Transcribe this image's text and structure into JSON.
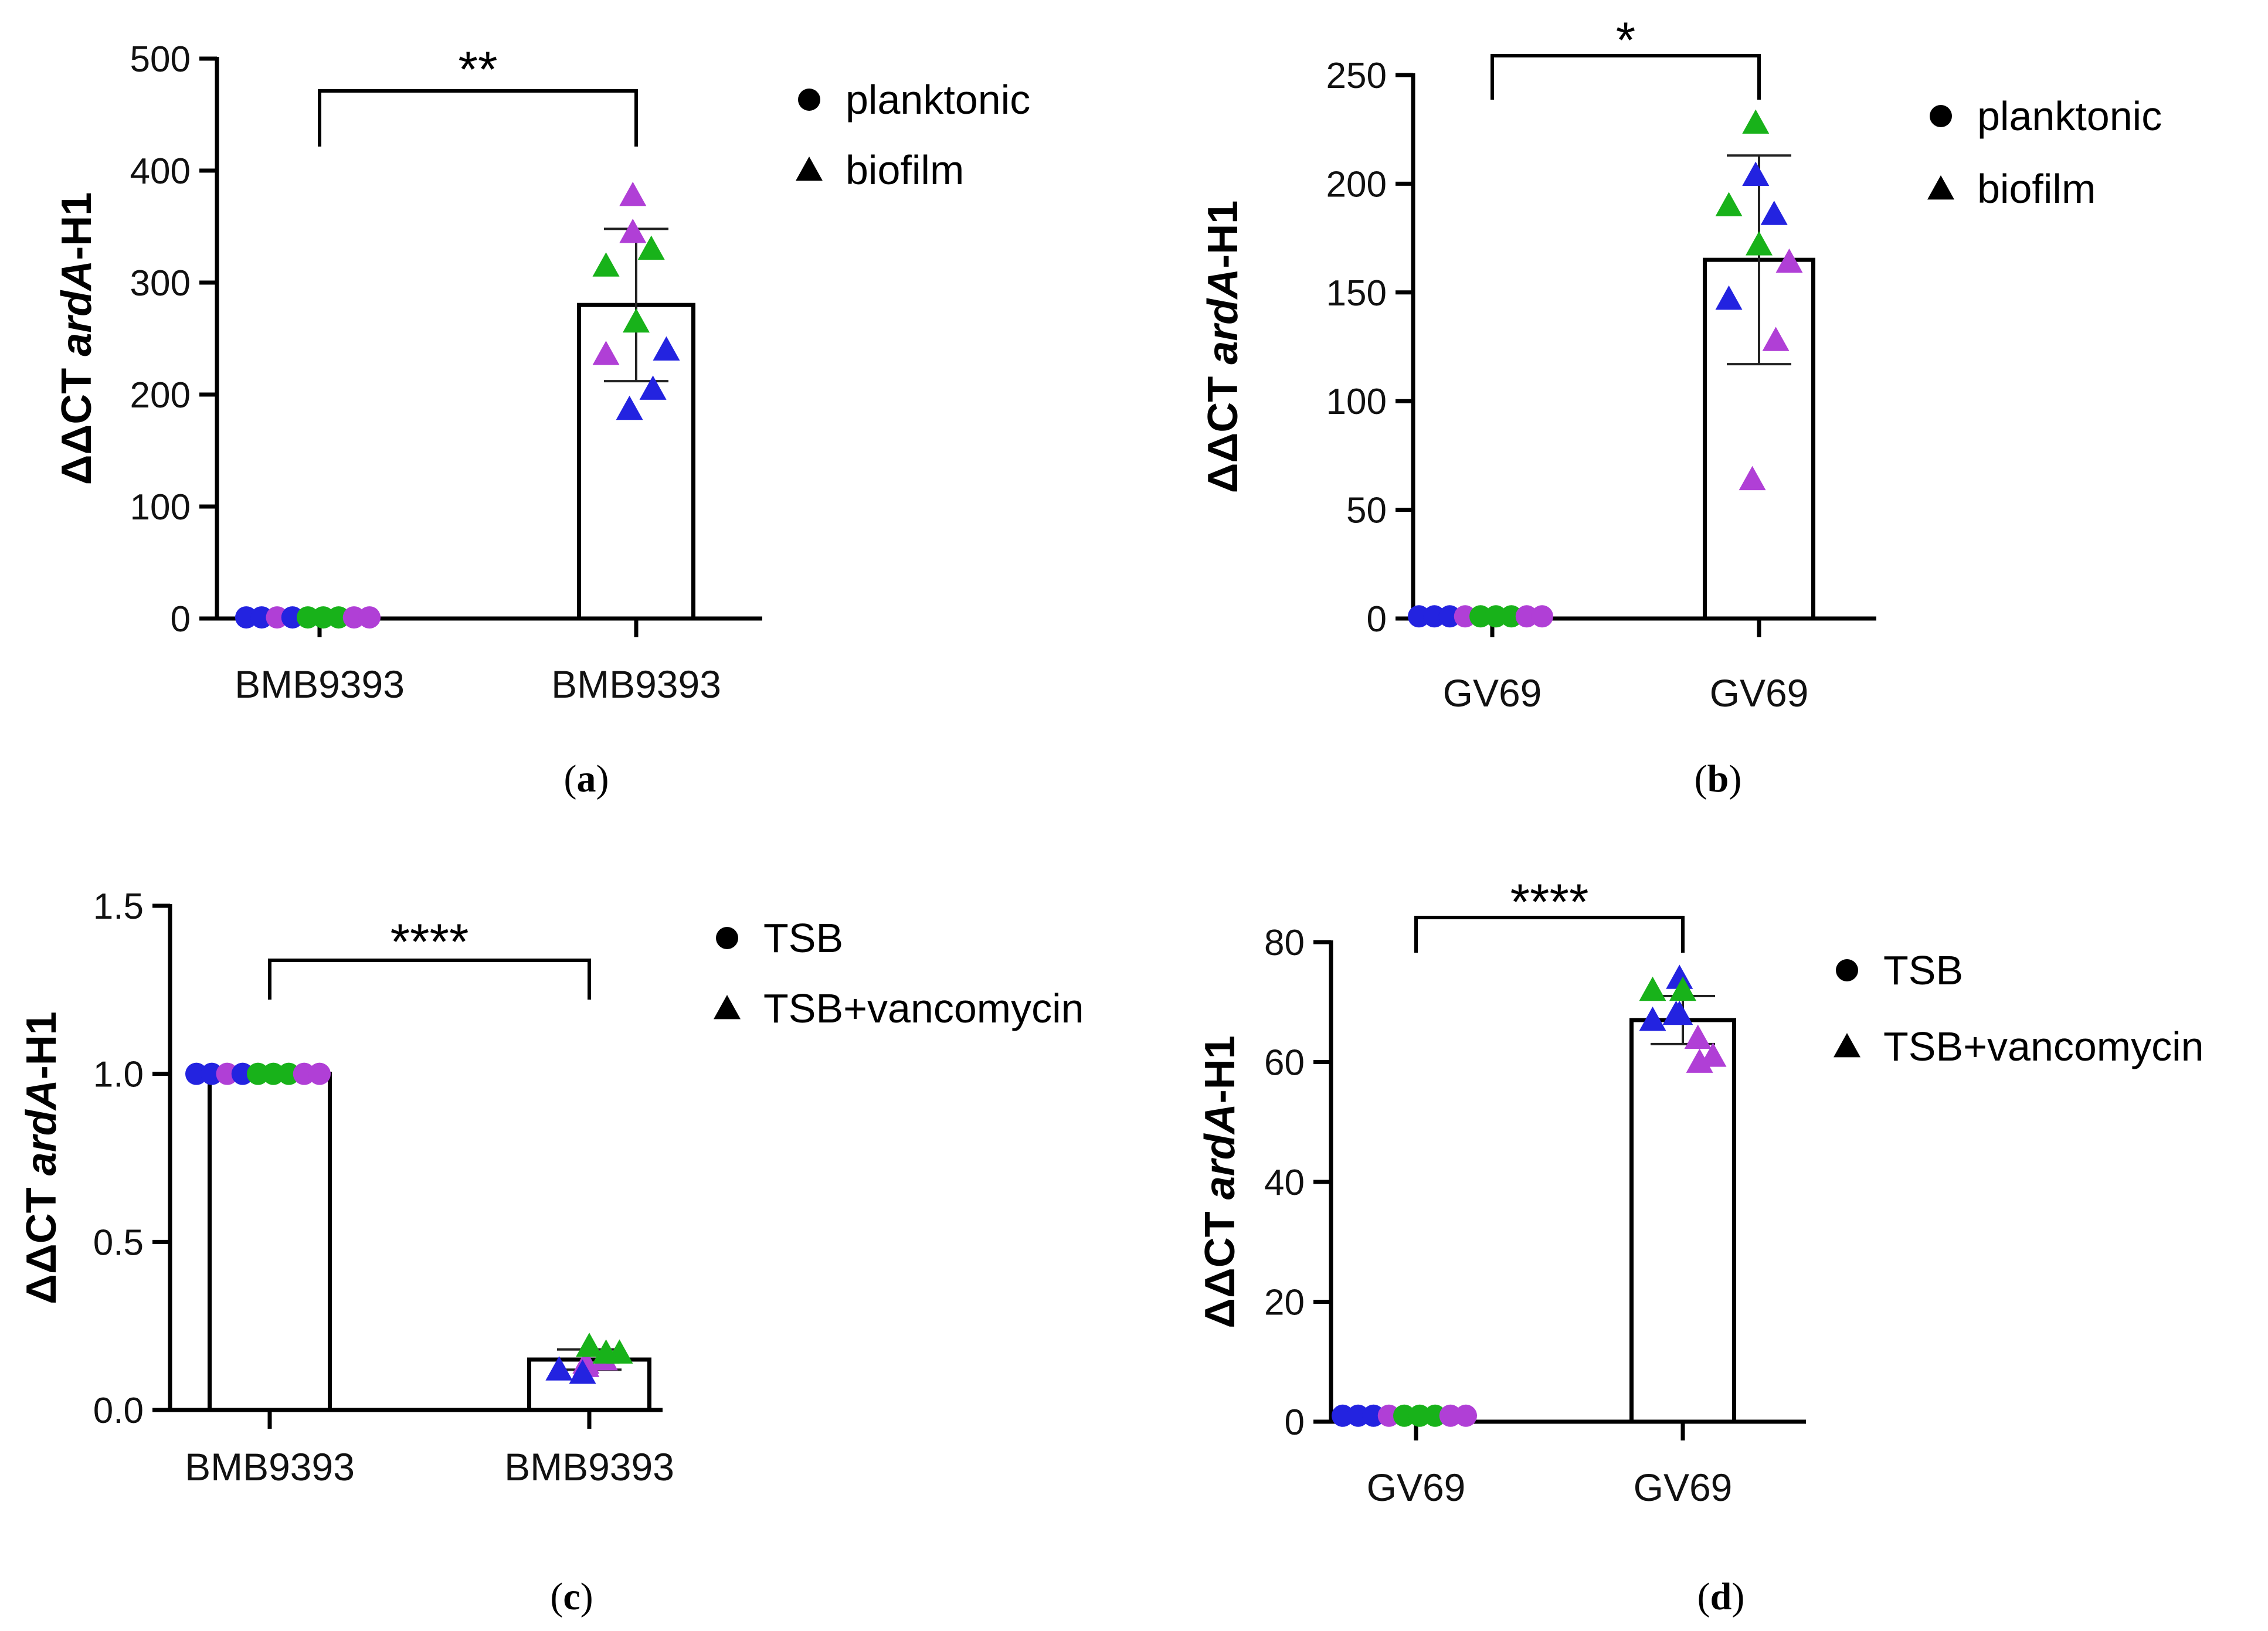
{
  "colors": {
    "blue": "#2323e0",
    "purple": "#b03fd6",
    "green": "#18b21a",
    "black": "#000000"
  },
  "chart_data": [
    {
      "type": "bar",
      "panel_label": "a",
      "ylabel": "ΔΔCT ",
      "ylabel_italic": "ardA",
      "ylabel_suffix": "-H1",
      "ylim": [
        0,
        500
      ],
      "yticks": [
        "0",
        "100",
        "200",
        "300",
        "400",
        "500"
      ],
      "ytick_values": [
        0,
        100,
        200,
        300,
        400,
        500
      ],
      "categories": [
        "BMB9393",
        "BMB9393"
      ],
      "legend": [
        "planktonic",
        "biofilm"
      ],
      "legend_markers": [
        "circle",
        "triangle"
      ],
      "significance": "**",
      "bars": [
        {
          "value": 1,
          "sd": 0,
          "marker": "circle",
          "points": [
            {
              "y": 1,
              "c": "blue"
            },
            {
              "y": 1,
              "c": "blue"
            },
            {
              "y": 1,
              "c": "purple"
            },
            {
              "y": 1,
              "c": "blue"
            },
            {
              "y": 1,
              "c": "green"
            },
            {
              "y": 1,
              "c": "green"
            },
            {
              "y": 1,
              "c": "green"
            },
            {
              "y": 1,
              "c": "purple"
            },
            {
              "y": 1,
              "c": "purple"
            }
          ]
        },
        {
          "value": 280,
          "sd": 68,
          "marker": "triangle",
          "points": [
            {
              "y": 378,
              "c": "purple"
            },
            {
              "y": 345,
              "c": "purple"
            },
            {
              "y": 315,
              "c": "green"
            },
            {
              "y": 330,
              "c": "green"
            },
            {
              "y": 265,
              "c": "green"
            },
            {
              "y": 240,
              "c": "blue"
            },
            {
              "y": 236,
              "c": "purple"
            },
            {
              "y": 205,
              "c": "blue"
            },
            {
              "y": 187,
              "c": "blue"
            }
          ]
        }
      ]
    },
    {
      "type": "bar",
      "panel_label": "b",
      "ylabel": "ΔΔCT ",
      "ylabel_italic": "ardA",
      "ylabel_suffix": "-H1",
      "ylim": [
        0,
        250
      ],
      "yticks": [
        "0",
        "50",
        "100",
        "150",
        "200",
        "250"
      ],
      "ytick_values": [
        0,
        50,
        100,
        150,
        200,
        250
      ],
      "categories": [
        "GV69",
        "GV69"
      ],
      "legend": [
        "planktonic",
        "biofilm"
      ],
      "legend_markers": [
        "circle",
        "triangle"
      ],
      "significance": "*",
      "bars": [
        {
          "value": 1,
          "sd": 0,
          "marker": "circle",
          "points": [
            {
              "y": 1,
              "c": "blue"
            },
            {
              "y": 1,
              "c": "blue"
            },
            {
              "y": 1,
              "c": "blue"
            },
            {
              "y": 1,
              "c": "purple"
            },
            {
              "y": 1,
              "c": "green"
            },
            {
              "y": 1,
              "c": "green"
            },
            {
              "y": 1,
              "c": "green"
            },
            {
              "y": 1,
              "c": "purple"
            },
            {
              "y": 1,
              "c": "purple"
            }
          ]
        },
        {
          "value": 165,
          "sd": 48,
          "marker": "triangle",
          "points": [
            {
              "y": 228,
              "c": "green"
            },
            {
              "y": 204,
              "c": "blue"
            },
            {
              "y": 190,
              "c": "green"
            },
            {
              "y": 186,
              "c": "blue"
            },
            {
              "y": 172,
              "c": "green"
            },
            {
              "y": 164,
              "c": "purple"
            },
            {
              "y": 147,
              "c": "blue"
            },
            {
              "y": 128,
              "c": "purple"
            },
            {
              "y": 64,
              "c": "purple"
            }
          ]
        }
      ]
    },
    {
      "type": "bar",
      "panel_label": "c",
      "ylabel": "ΔΔCT ",
      "ylabel_italic": "ardA",
      "ylabel_suffix": "-H1",
      "ylim": [
        0,
        1.5
      ],
      "yticks": [
        "0.0",
        "0.5",
        "1.0",
        "1.5"
      ],
      "ytick_values": [
        0,
        0.5,
        1.0,
        1.5
      ],
      "categories": [
        "BMB9393",
        "BMB9393"
      ],
      "legend": [
        "TSB",
        "TSB+vancomycin"
      ],
      "legend_markers": [
        "circle",
        "triangle"
      ],
      "significance": "****",
      "bars": [
        {
          "value": 1.0,
          "sd": 0,
          "marker": "circle",
          "points": [
            {
              "y": 1.0,
              "c": "blue"
            },
            {
              "y": 1.0,
              "c": "blue"
            },
            {
              "y": 1.0,
              "c": "purple"
            },
            {
              "y": 1.0,
              "c": "blue"
            },
            {
              "y": 1.0,
              "c": "green"
            },
            {
              "y": 1.0,
              "c": "green"
            },
            {
              "y": 1.0,
              "c": "green"
            },
            {
              "y": 1.0,
              "c": "purple"
            },
            {
              "y": 1.0,
              "c": "purple"
            }
          ]
        },
        {
          "value": 0.15,
          "sd": 0.03,
          "marker": "triangle",
          "points": [
            {
              "y": 0.14,
              "c": "purple"
            },
            {
              "y": 0.13,
              "c": "purple"
            },
            {
              "y": 0.12,
              "c": "blue"
            },
            {
              "y": 0.15,
              "c": "purple"
            },
            {
              "y": 0.19,
              "c": "green"
            },
            {
              "y": 0.17,
              "c": "green"
            },
            {
              "y": 0.12,
              "c": "blue"
            },
            {
              "y": 0.17,
              "c": "green"
            },
            {
              "y": 0.11,
              "c": "blue"
            }
          ]
        }
      ]
    },
    {
      "type": "bar",
      "panel_label": "d",
      "ylabel": "ΔΔCT ",
      "ylabel_italic": "ardA",
      "ylabel_suffix": "-H1",
      "ylim": [
        0,
        80
      ],
      "yticks": [
        "0",
        "20",
        "40",
        "60",
        "80"
      ],
      "ytick_values": [
        0,
        20,
        40,
        60,
        80
      ],
      "categories": [
        "GV69",
        "GV69"
      ],
      "legend": [
        "TSB",
        "TSB+vancomycin"
      ],
      "legend_markers": [
        "circle",
        "triangle"
      ],
      "significance": "****",
      "bars": [
        {
          "value": 1,
          "sd": 0,
          "marker": "circle",
          "points": [
            {
              "y": 1,
              "c": "blue"
            },
            {
              "y": 1,
              "c": "blue"
            },
            {
              "y": 1,
              "c": "blue"
            },
            {
              "y": 1,
              "c": "purple"
            },
            {
              "y": 1,
              "c": "green"
            },
            {
              "y": 1,
              "c": "green"
            },
            {
              "y": 1,
              "c": "green"
            },
            {
              "y": 1,
              "c": "purple"
            },
            {
              "y": 1,
              "c": "purple"
            }
          ]
        },
        {
          "value": 67,
          "sd": 4,
          "marker": "triangle",
          "points": [
            {
              "y": 68,
              "c": "blue"
            },
            {
              "y": 74,
              "c": "blue"
            },
            {
              "y": 72,
              "c": "green"
            },
            {
              "y": 64,
              "c": "purple"
            },
            {
              "y": 72,
              "c": "green"
            },
            {
              "y": 61,
              "c": "purple"
            },
            {
              "y": 67,
              "c": "blue"
            },
            {
              "y": 60,
              "c": "purple"
            },
            {
              "y": 68,
              "c": "blue"
            }
          ]
        }
      ]
    }
  ]
}
